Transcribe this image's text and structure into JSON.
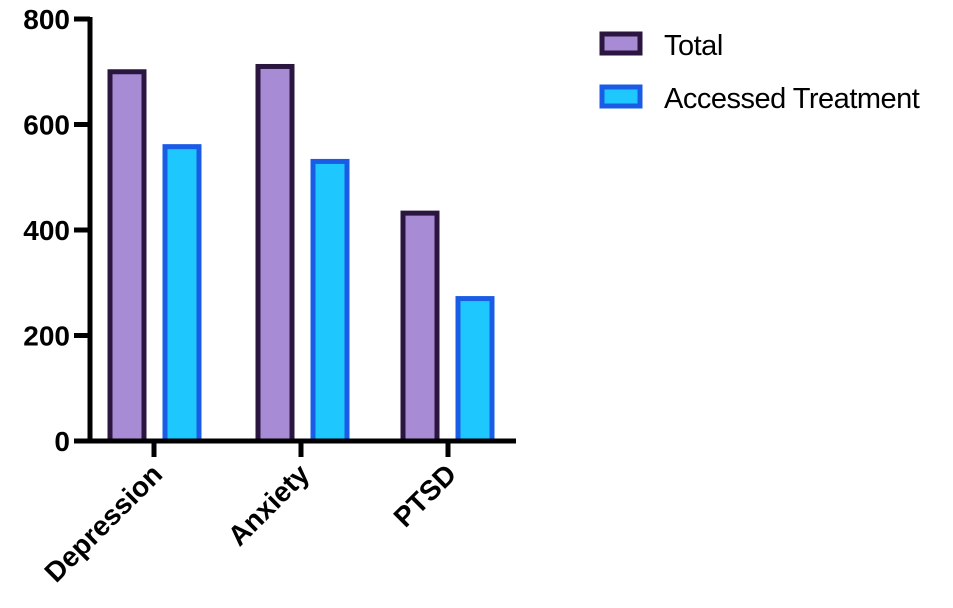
{
  "chart_data": {
    "type": "bar",
    "categories": [
      "Depression",
      "Anxiety",
      "PTSD"
    ],
    "series": [
      {
        "name": "Total",
        "values": [
          700,
          710,
          432
        ],
        "fill": "#a78bd4",
        "stroke": "#2b1640"
      },
      {
        "name": "Accessed Treatment",
        "values": [
          558,
          530,
          270
        ],
        "fill": "#1ec8ff",
        "stroke": "#1a5ce6"
      }
    ],
    "yticks": [
      "0",
      "200",
      "400",
      "600",
      "800"
    ],
    "ylim": [
      0,
      800
    ],
    "legend_position": "top-right",
    "grid": false
  }
}
